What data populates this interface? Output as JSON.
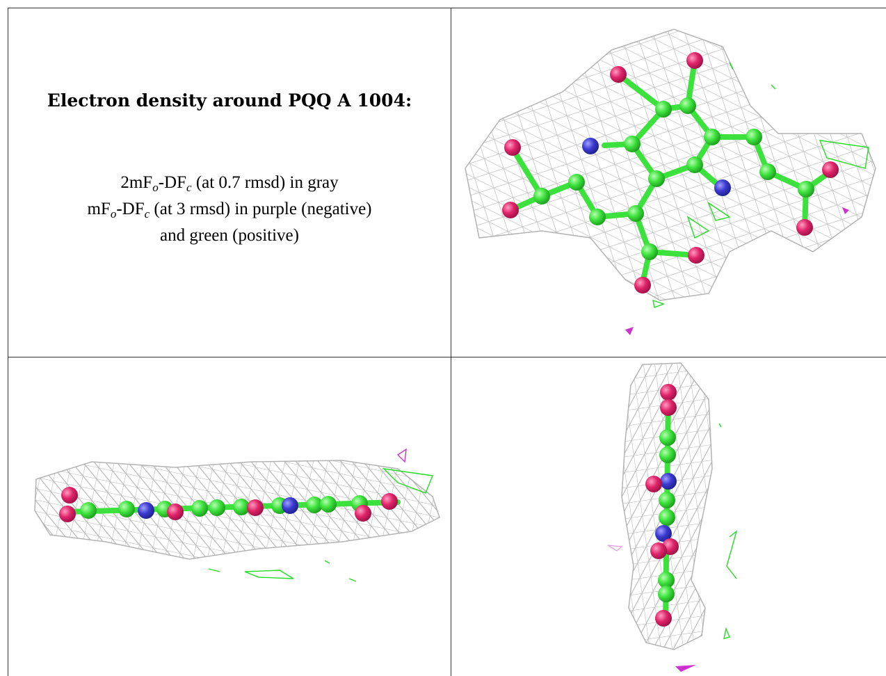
{
  "legend": {
    "title": "Electron density around PQQ A 1004:",
    "line1": {
      "a": "2mF",
      "a_sub": "o",
      "b": "-DF",
      "b_sub": "c",
      "tail": " (at 0.7 rmsd) in gray"
    },
    "line2": {
      "a": "mF",
      "a_sub": "o",
      "b": "-DF",
      "b_sub": "c",
      "tail": " (at 3 rmsd) in purple (negative)"
    },
    "line3": "and green (positive)"
  },
  "colors": {
    "mesh_2fofc": "#b3b3b3",
    "positive_density": "#22dd22",
    "negative_density": "#cc33cc",
    "carbon": "#3de13d",
    "nitrogen": "#3a3ad0",
    "oxygen": "#e0246a",
    "border": "#333333"
  },
  "views": [
    {
      "name": "top-view"
    },
    {
      "name": "edge-on-view"
    },
    {
      "name": "end-on-view"
    }
  ]
}
